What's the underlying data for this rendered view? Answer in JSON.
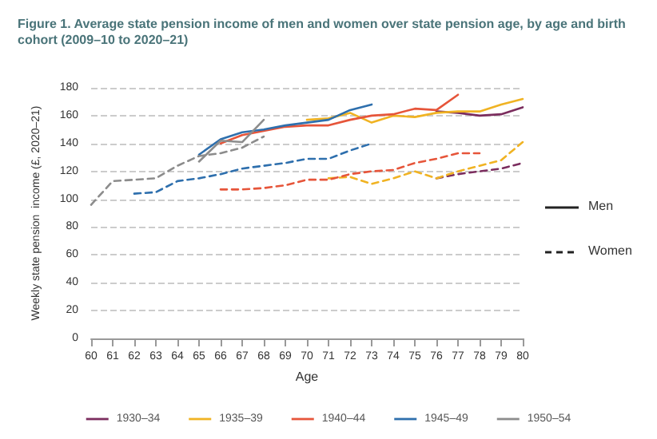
{
  "chart_data": {
    "type": "line",
    "title": "Figure 1. Average state pension income of men and women over state pension age, by age and birth cohort (2009–10 to 2020–21)",
    "xlabel": "Age",
    "ylabel": "Weekly state pension  income (£, 2020–21)",
    "xlim": [
      60,
      80
    ],
    "xticks": [
      60,
      61,
      62,
      63,
      64,
      65,
      66,
      67,
      68,
      69,
      70,
      71,
      72,
      73,
      74,
      75,
      76,
      77,
      78,
      79,
      80
    ],
    "ylim": [
      0,
      180
    ],
    "yticks": [
      0,
      20,
      40,
      60,
      80,
      100,
      120,
      140,
      160,
      180
    ],
    "grid": "y",
    "legend": "bottom",
    "marker": "none",
    "annotations": [
      "Men",
      "Women"
    ],
    "series": [
      {
        "name": "1930–34",
        "color": "#7b2d5e",
        "line_style": "solid",
        "x": [
          76,
          77,
          78,
          79,
          80
        ],
        "values": [
          163,
          162,
          160,
          161,
          166
        ]
      },
      {
        "name": "1935–39",
        "color": "#f0b323",
        "line_style": "solid",
        "x": [
          70,
          71,
          72,
          73,
          74,
          75,
          76,
          77,
          78,
          79,
          80
        ],
        "values": [
          157,
          158,
          162,
          155,
          160,
          159,
          162,
          163,
          163,
          168,
          172
        ]
      },
      {
        "name": "1940–44",
        "color": "#e6553a",
        "line_style": "solid",
        "x": [
          66,
          67,
          68,
          69,
          70,
          71,
          72,
          73,
          74,
          75,
          76,
          77
        ],
        "values": [
          140,
          146,
          149,
          152,
          153,
          153,
          157,
          160,
          161,
          165,
          164,
          175
        ]
      },
      {
        "name": "1945–49",
        "color": "#2e6fad",
        "line_style": "solid",
        "x": [
          65,
          66,
          67,
          68,
          69,
          70,
          71,
          72,
          73
        ],
        "values": [
          132,
          143,
          148,
          150,
          153,
          155,
          157,
          164,
          168
        ]
      },
      {
        "name": "1950–54",
        "color": "#8c8c8c",
        "line_style": "solid",
        "x": [
          65,
          66,
          67,
          68
        ],
        "values": [
          127,
          142,
          141,
          157
        ]
      },
      {
        "color": "#7b2d5e",
        "line_style": "dashed",
        "x": [
          76,
          77,
          78,
          79,
          80
        ],
        "values": [
          115,
          118,
          120,
          122,
          126
        ]
      },
      {
        "color": "#f0b323",
        "line_style": "dashed",
        "x": [
          71,
          72,
          73,
          74,
          75,
          76,
          77,
          78,
          79,
          80
        ],
        "values": [
          115,
          116,
          111,
          115,
          120,
          115,
          120,
          124,
          128,
          141
        ]
      },
      {
        "color": "#e6553a",
        "line_style": "dashed",
        "x": [
          66,
          67,
          68,
          69,
          70,
          71,
          72,
          73,
          74,
          75,
          76,
          77,
          78
        ],
        "values": [
          107,
          107,
          108,
          110,
          114,
          114,
          118,
          120,
          121,
          126,
          129,
          133,
          133
        ]
      },
      {
        "color": "#2e6fad",
        "line_style": "dashed",
        "x": [
          62,
          63,
          64,
          65,
          66,
          67,
          68,
          69,
          70,
          71,
          72,
          73
        ],
        "values": [
          104,
          105,
          113,
          115,
          118,
          122,
          124,
          126,
          129,
          129,
          135,
          140
        ]
      },
      {
        "color": "#8c8c8c",
        "line_style": "dashed",
        "x": [
          60,
          61,
          62,
          63,
          64,
          65,
          66,
          67,
          68
        ],
        "values": [
          96,
          113,
          114,
          115,
          124,
          131,
          133,
          137,
          145
        ]
      }
    ]
  }
}
